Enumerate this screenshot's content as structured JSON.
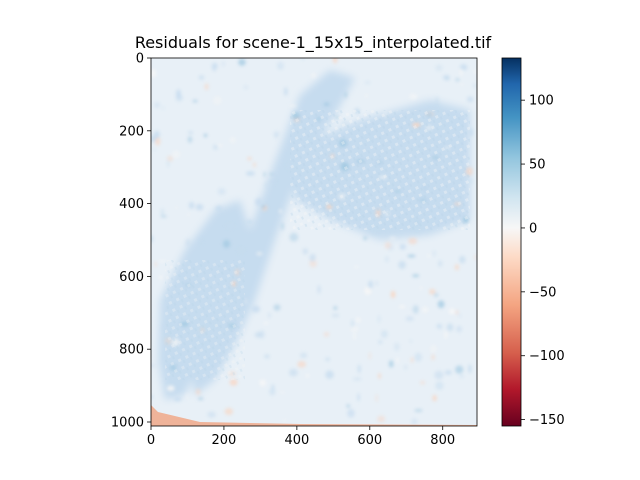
{
  "chart_data": {
    "type": "heatmap",
    "title": "Residuals for scene-1_15x15_interpolated.tif",
    "xlabel": "",
    "ylabel": "",
    "x_range": [
      0,
      894
    ],
    "y_range": [
      0,
      1011
    ],
    "y_inverted": true,
    "x_ticks": [
      "0",
      "200",
      "400",
      "600",
      "800"
    ],
    "y_ticks": [
      "0",
      "200",
      "400",
      "600",
      "800",
      "1000"
    ],
    "colormap": "RdBu",
    "colorbar": {
      "vmin": -155,
      "vmax": 133,
      "ticks": [
        "−150",
        "−100",
        "−50",
        "0",
        "50",
        "100"
      ],
      "tick_values": [
        -150,
        -100,
        -50,
        0,
        50,
        100
      ]
    },
    "colors": {
      "background_tone": "#e8f0f7",
      "positive_light": "#c6dcef",
      "positive_mid": "#9cc6e0",
      "negative_light": "#f8d6c4",
      "negative_mid": "#f0a888"
    },
    "features": [
      {
        "name": "diagonal-river-band",
        "sign": "positive"
      },
      {
        "name": "left-bank-urban-area",
        "sign": "mixed"
      },
      {
        "name": "upper-right-urban-area",
        "sign": "positive"
      },
      {
        "name": "bottom-left-edge",
        "sign": "negative"
      }
    ],
    "grid": false
  }
}
